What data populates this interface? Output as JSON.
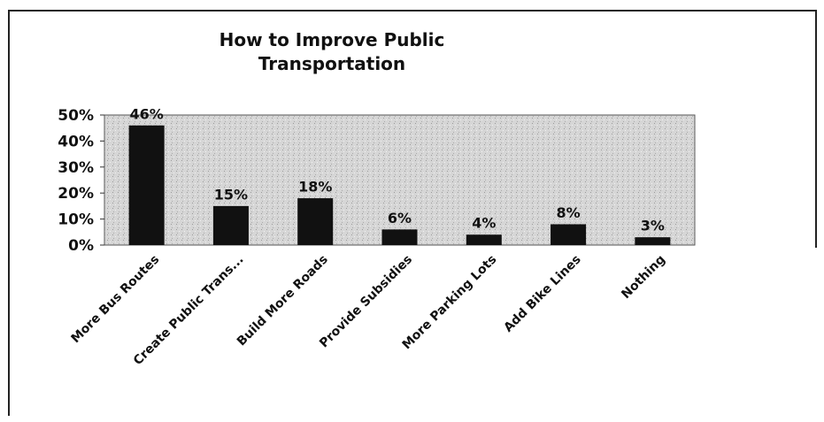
{
  "chart_data": {
    "type": "bar",
    "title": "How to Improve Public Transportation",
    "categories": [
      "More Bus Routes",
      "Create Public Trans...",
      "Build More Roads",
      "Provide Subsidies",
      "More Parking Lots",
      "Add Bike Lines",
      "Nothing"
    ],
    "values": [
      46,
      15,
      18,
      6,
      4,
      8,
      3
    ],
    "value_labels": [
      "46%",
      "15%",
      "18%",
      "6%",
      "4%",
      "8%",
      "3%"
    ],
    "color": "#111111",
    "ylim": [
      0,
      50
    ],
    "yticks": [
      {
        "value": 0,
        "label": "0%"
      },
      {
        "value": 10,
        "label": "10%"
      },
      {
        "value": 20,
        "label": "20%"
      },
      {
        "value": 30,
        "label": "30%"
      },
      {
        "value": 40,
        "label": "40%"
      },
      {
        "value": 50,
        "label": "50%"
      }
    ]
  }
}
